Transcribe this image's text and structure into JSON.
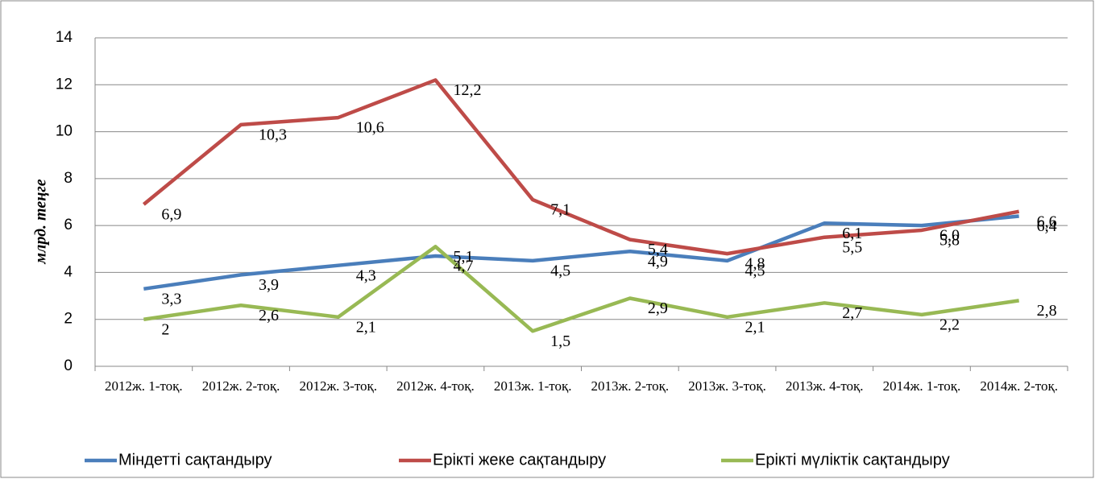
{
  "chart_data": {
    "type": "line",
    "y_label": "млрд. теңге",
    "categories": [
      "2012ж. 1-тоқ.",
      "2012ж. 2-тоқ.",
      "2012ж. 3-тоқ.",
      "2012ж. 4-тоқ.",
      "2013ж. 1-тоқ.",
      "2013ж. 2-тоқ.",
      "2013ж. 3-тоқ.",
      "2013ж. 4-тоқ.",
      "2014ж. 1-тоқ.",
      "2014ж. 2-тоқ."
    ],
    "series": [
      {
        "name": "Міндетті сақтандыру",
        "color": "#4a7ebb",
        "values": [
          3.3,
          3.9,
          4.3,
          4.7,
          4.5,
          4.9,
          4.5,
          6.1,
          6.0,
          6.4
        ],
        "value_labels": [
          "3,3",
          "3,9",
          "4,3",
          "4,7",
          "4,5",
          "4,9",
          "4,5",
          "6,1",
          "6,0",
          "6,4"
        ]
      },
      {
        "name": "Ерікті жеке сақтандыру",
        "color": "#be4b48",
        "values": [
          6.9,
          10.3,
          10.6,
          12.2,
          7.1,
          5.4,
          4.8,
          5.5,
          5.8,
          6.6
        ],
        "value_labels": [
          "6,9",
          "10,3",
          "10,6",
          "12,2",
          "7,1",
          "5,4",
          "4,8",
          "5,5",
          "5,8",
          "6,6"
        ]
      },
      {
        "name": "Ерікті мүліктік сақтандыру",
        "color": "#98b954",
        "values": [
          2,
          2.6,
          2.1,
          5.1,
          1.5,
          2.9,
          2.1,
          2.7,
          2.2,
          2.8
        ],
        "value_labels": [
          "2",
          "2,6",
          "2,1",
          "5,1",
          "1,5",
          "2,9",
          "2,1",
          "2,7",
          "2,2",
          "2,8"
        ]
      }
    ],
    "ylim": [
      0,
      14
    ],
    "yticks": [
      0,
      2,
      4,
      6,
      8,
      10,
      12,
      14
    ],
    "grid": true,
    "legend": "bottom"
  }
}
